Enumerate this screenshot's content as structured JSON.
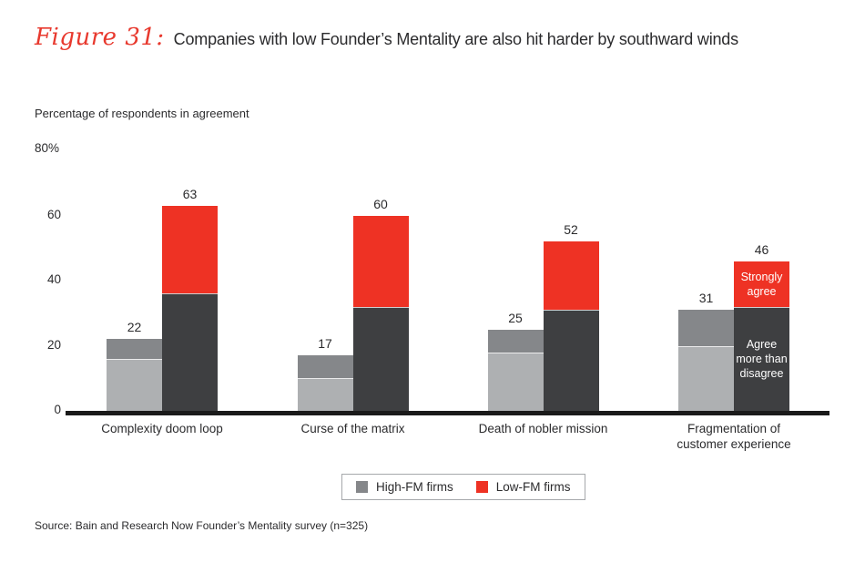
{
  "figure": {
    "label": "Figure 31:",
    "title": "Companies with low Founder’s Mentality are also hit harder by southward winds"
  },
  "axis": {
    "title": "Percentage of respondents in agreement",
    "top_label": "80%"
  },
  "chart_data": {
    "type": "bar",
    "stacked": true,
    "title": "Companies with low Founder’s Mentality are also hit harder by southward winds",
    "ylabel": "Percentage of respondents in agreement",
    "ylim": [
      0,
      80
    ],
    "y_ticks": [
      60,
      40,
      20,
      0
    ],
    "grid": false,
    "legend_position": "bottom",
    "categories": [
      "Complexity doom loop",
      "Curse of the matrix",
      "Death of nobler mission",
      "Fragmentation of\ncustomer experience"
    ],
    "series": [
      {
        "name": "High-FM firms",
        "slug": "high-fm",
        "totals": [
          22,
          17,
          25,
          31
        ],
        "segments": [
          {
            "label": "Agree more than disagree",
            "color": "#aeb0b2",
            "values": [
              16,
              10,
              18,
              20
            ]
          },
          {
            "label": "Strongly agree",
            "color": "#85878a",
            "values": [
              6,
              7,
              7,
              11
            ]
          }
        ]
      },
      {
        "name": "Low-FM firms",
        "slug": "low-fm",
        "totals": [
          63,
          60,
          52,
          46
        ],
        "segments": [
          {
            "label": "Agree more than disagree",
            "color": "#3e3f41",
            "values": [
              36,
              32,
              31,
              32
            ]
          },
          {
            "label": "Strongly agree",
            "color": "#ee3224",
            "values": [
              27,
              28,
              21,
              14
            ]
          }
        ]
      }
    ],
    "in_bar_labels": {
      "group_index": 3,
      "series_index": 1,
      "strongly_agree": "Strongly agree",
      "agree_more_than_disagree": "Agree more than disagree"
    }
  },
  "legend": {
    "items": [
      {
        "label": "High-FM firms",
        "color": "#85878a"
      },
      {
        "label": "Low-FM firms",
        "color": "#ee3224"
      }
    ]
  },
  "source": "Source: Bain and Research Now Founder’s Mentality survey (n=325)",
  "colors": {
    "figure_label": "#e8392e",
    "text": "#2b2b2d",
    "axis_line": "#1a1a1a"
  }
}
